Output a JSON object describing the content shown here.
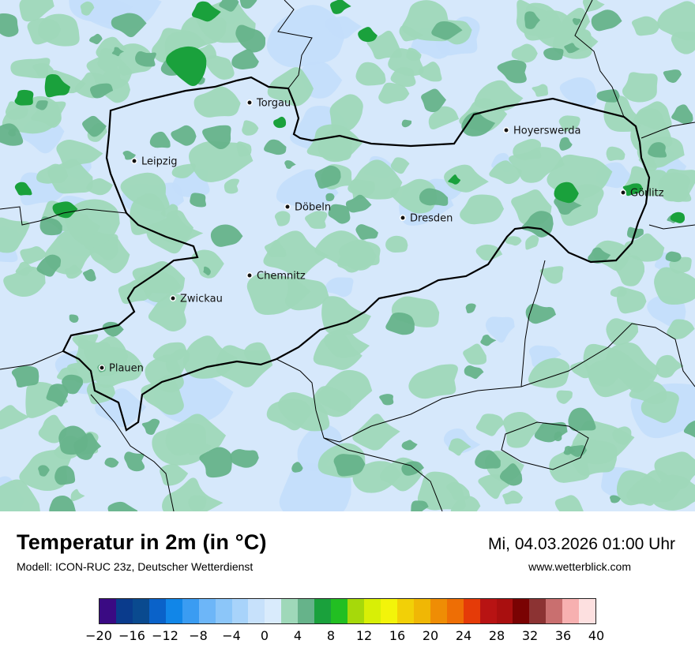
{
  "map": {
    "cities": [
      {
        "name": "Torgau"
      },
      {
        "name": "Hoyerswerda"
      },
      {
        "name": "Leipzig"
      },
      {
        "name": "Görlitz"
      },
      {
        "name": "Döbeln"
      },
      {
        "name": "Dresden"
      },
      {
        "name": "Chemnitz"
      },
      {
        "name": "Zwickau"
      },
      {
        "name": "Plauen"
      }
    ],
    "colors": {
      "background": "#d6e8fb",
      "light_blue": "#c3defb",
      "light_green": "#9fd8b9",
      "mid_green": "#66b38a",
      "dark_green": "#1aa13c"
    }
  },
  "info": {
    "title": "Temperatur in 2m (in °C)",
    "subtitle": "Modell: ICON-RUC 23z, Deutscher Wetterdienst",
    "datetime": "Mi, 04.03.2026 01:00 Uhr",
    "site": "www.wetterblick.com"
  },
  "legend": {
    "colors": [
      "#3a0a83",
      "#0a3b8c",
      "#0a4a8f",
      "#0a62c9",
      "#1186e8",
      "#3a9cf2",
      "#6db6f8",
      "#8cc6f9",
      "#a8d3fa",
      "#c7e1fb",
      "#d9ebfc",
      "#9fd8b9",
      "#66b38a",
      "#1aa13c",
      "#22bf22",
      "#a6d90a",
      "#d8ef06",
      "#f3f40a",
      "#f2d007",
      "#f0b705",
      "#ef8d05",
      "#ee6e05",
      "#e53b08",
      "#b81313",
      "#a90f0f",
      "#7a0303",
      "#8c3333",
      "#c96f6f",
      "#f7b0b0",
      "#fde0e0"
    ],
    "ticks": [
      "−20",
      "−16",
      "−12",
      "−8",
      "−4",
      "0",
      "4",
      "8",
      "12",
      "16",
      "20",
      "24",
      "28",
      "32",
      "36",
      "40"
    ]
  }
}
